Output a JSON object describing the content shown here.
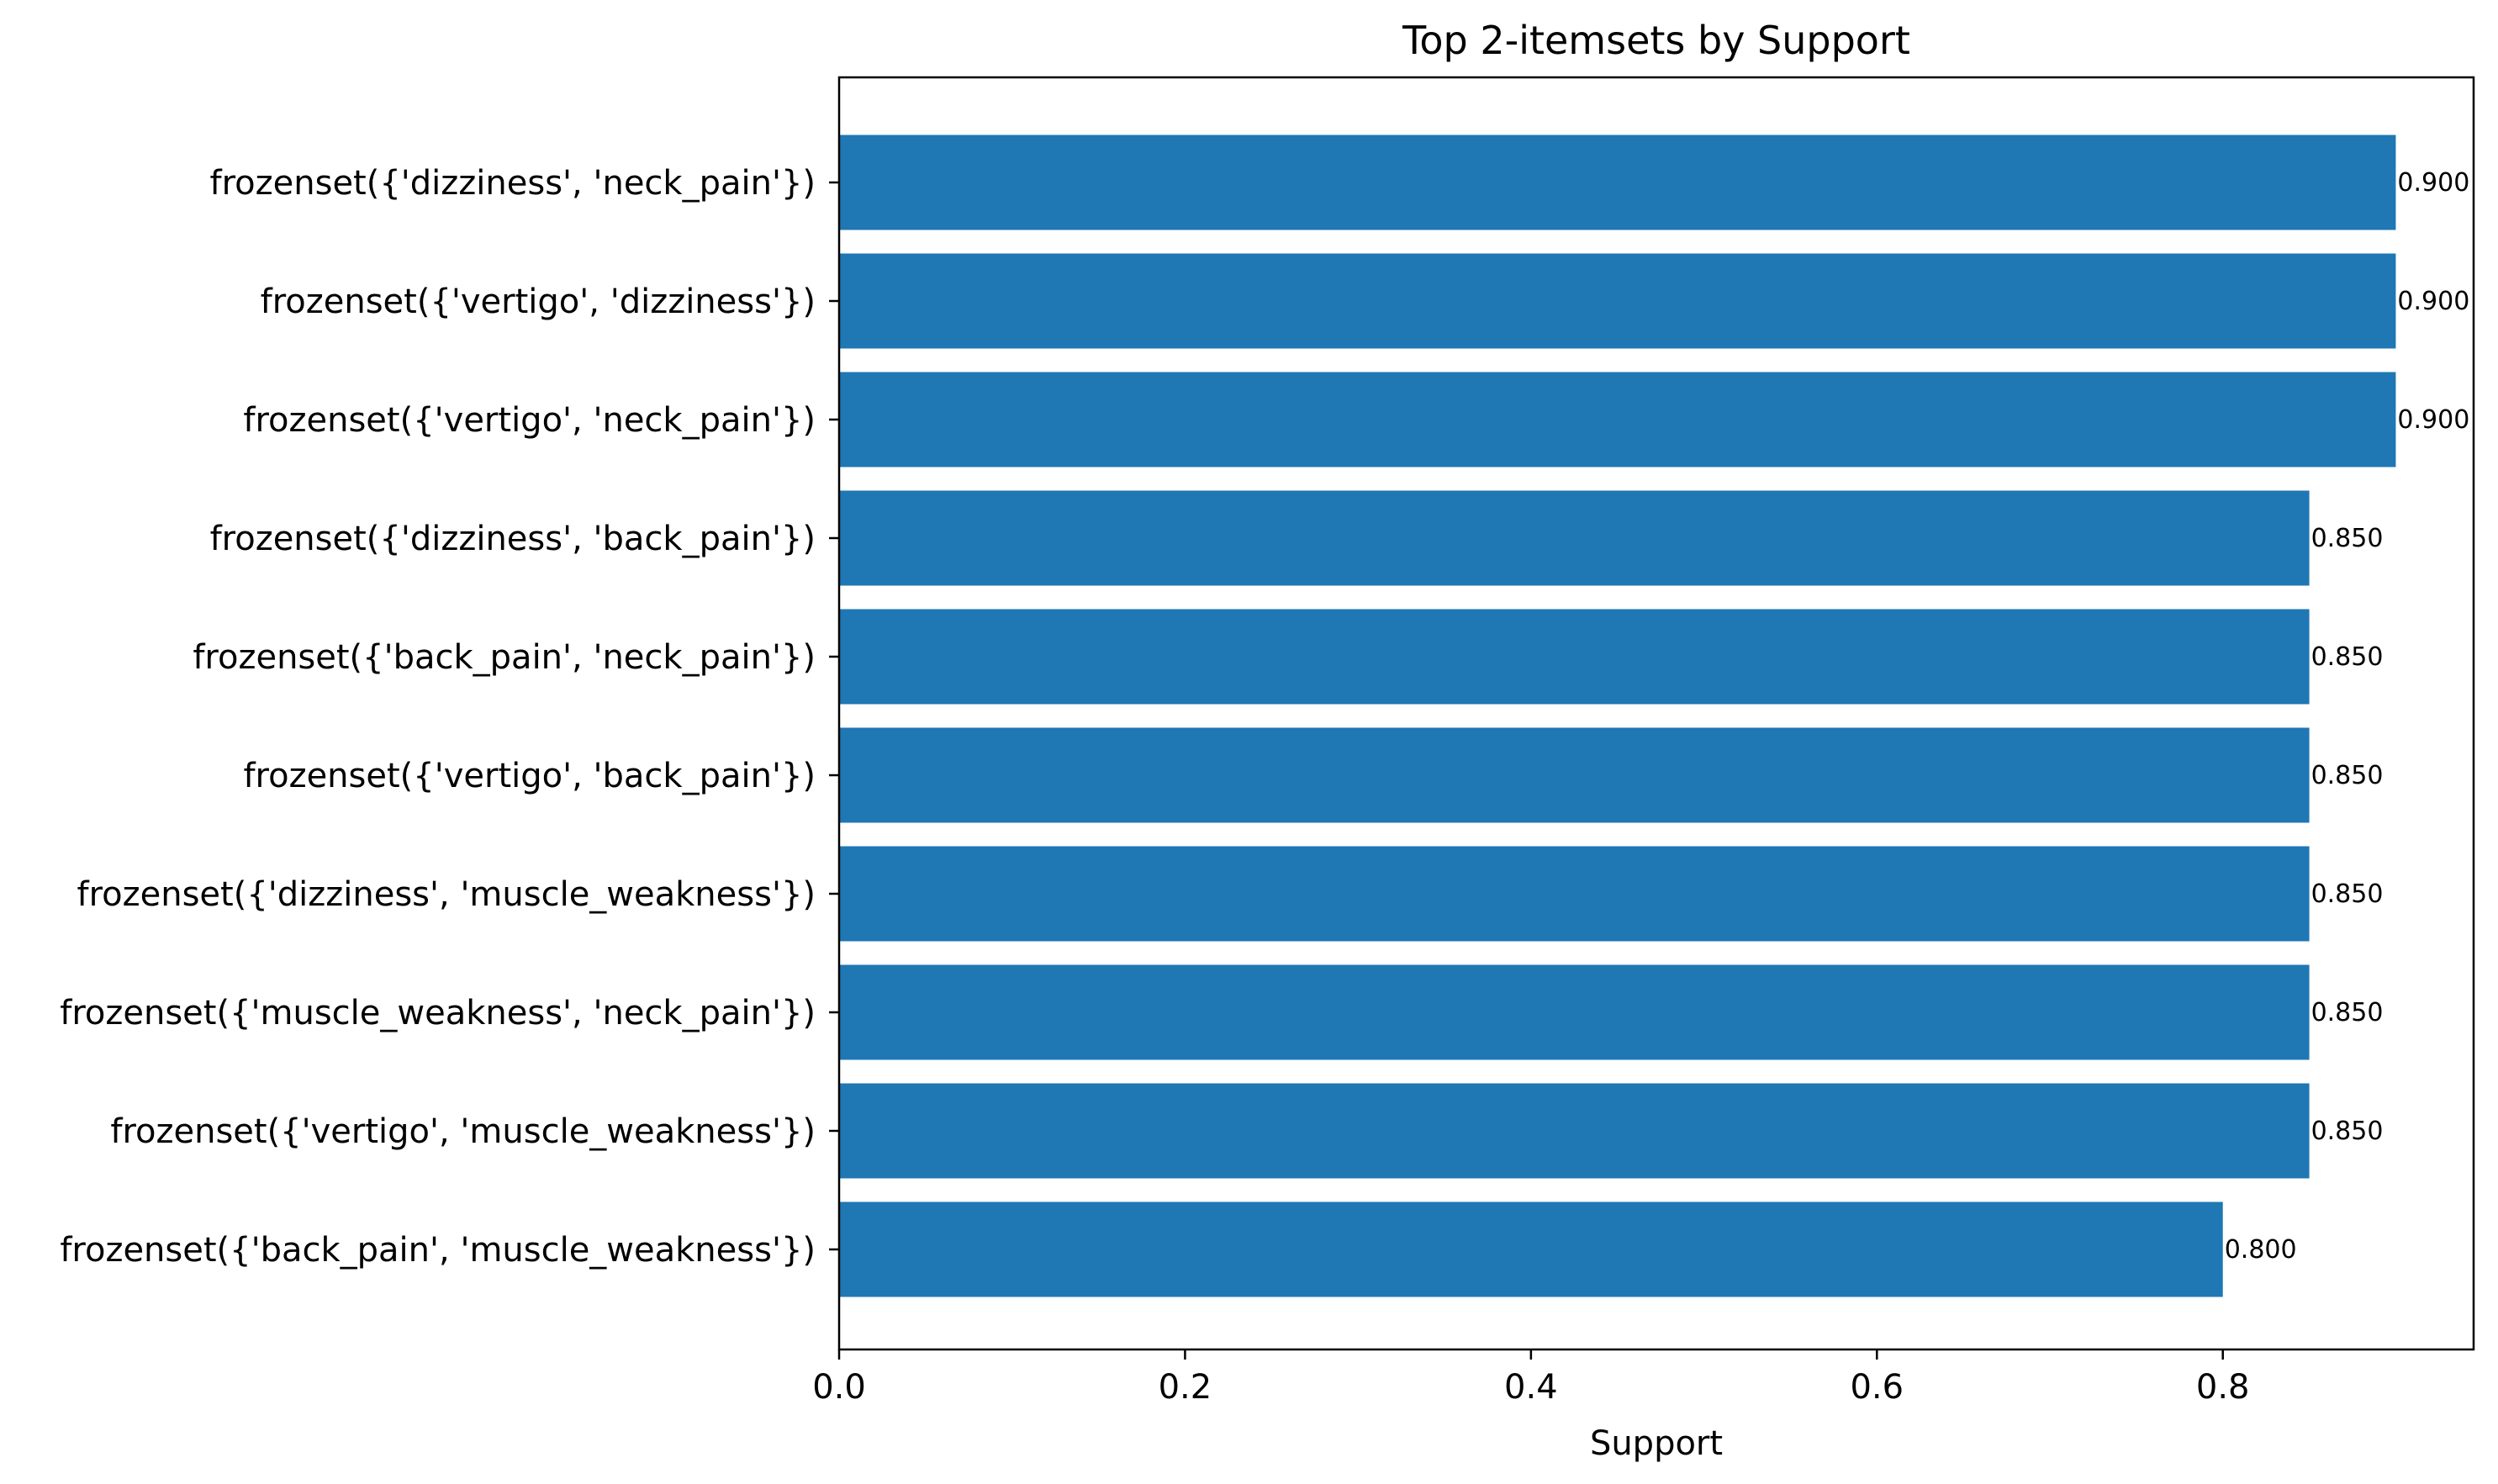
{
  "chart_data": {
    "type": "bar",
    "orientation": "horizontal",
    "title": "Top 2-itemsets by Support",
    "xlabel": "Support",
    "ylabel": "",
    "xlim": [
      0,
      0.945
    ],
    "xticks": [
      0.0,
      0.2,
      0.4,
      0.6,
      0.8
    ],
    "xtick_labels": [
      "0.0",
      "0.2",
      "0.4",
      "0.6",
      "0.8"
    ],
    "grid": false,
    "bar_color": "#1f77b4",
    "categories": [
      "frozenset({'dizziness', 'neck_pain'})",
      "frozenset({'vertigo', 'dizziness'})",
      "frozenset({'vertigo', 'neck_pain'})",
      "frozenset({'dizziness', 'back_pain'})",
      "frozenset({'back_pain', 'neck_pain'})",
      "frozenset({'vertigo', 'back_pain'})",
      "frozenset({'dizziness', 'muscle_weakness'})",
      "frozenset({'muscle_weakness', 'neck_pain'})",
      "frozenset({'vertigo', 'muscle_weakness'})",
      "frozenset({'back_pain', 'muscle_weakness'})"
    ],
    "values": [
      0.9,
      0.9,
      0.9,
      0.85,
      0.85,
      0.85,
      0.85,
      0.85,
      0.85,
      0.8
    ],
    "value_labels": [
      "0.900",
      "0.900",
      "0.900",
      "0.850",
      "0.850",
      "0.850",
      "0.850",
      "0.850",
      "0.850",
      "0.800"
    ]
  }
}
